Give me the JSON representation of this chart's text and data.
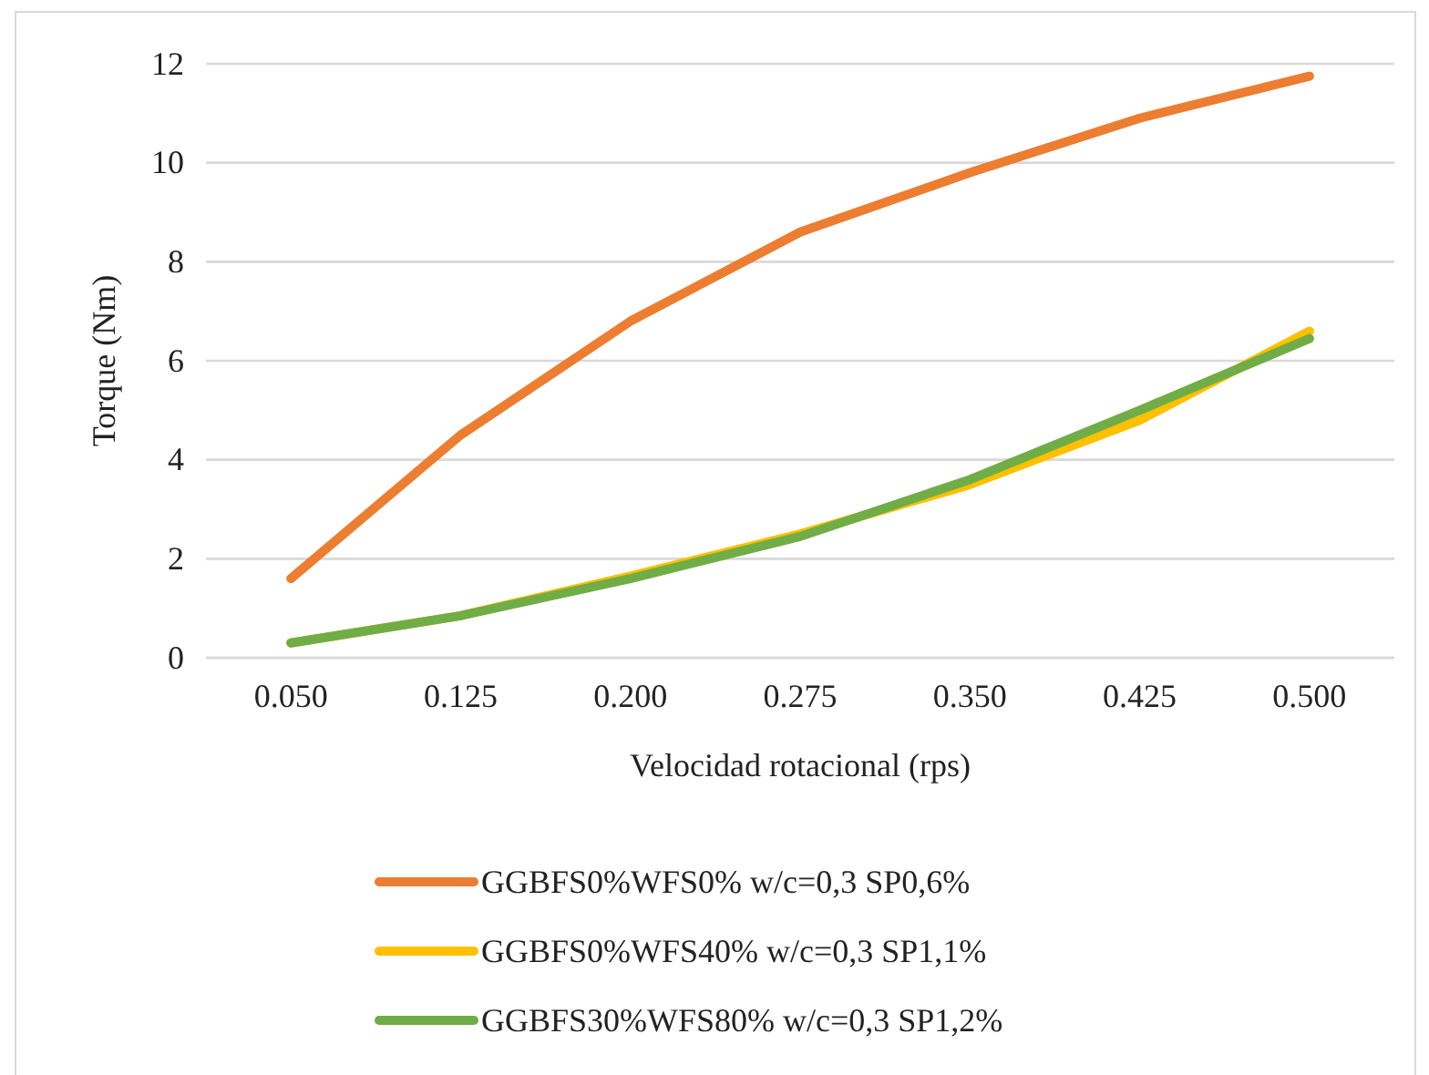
{
  "chart_data": {
    "type": "line",
    "xlabel": "Velocidad rotacional (rps)",
    "ylabel": "Torque (Nm)",
    "categories": [
      "0.050",
      "0.125",
      "0.200",
      "0.275",
      "0.350",
      "0.425",
      "0.500"
    ],
    "series": [
      {
        "name": "GGBFS0%WFS0% w/c=0,3 SP0,6%",
        "color": "#ed7d31",
        "values": [
          1.6,
          4.5,
          6.8,
          8.6,
          9.8,
          10.9,
          11.75
        ]
      },
      {
        "name": "GGBFS0%WFS40% w/c=0,3 SP1,1%",
        "color": "#ffc000",
        "values": [
          0.3,
          0.85,
          1.65,
          2.5,
          3.5,
          4.8,
          6.6
        ]
      },
      {
        "name": "GGBFS30%WFS80% w/c=0,3 SP1,2%",
        "color": "#70ad47",
        "values": [
          0.3,
          0.85,
          1.6,
          2.45,
          3.6,
          5.0,
          6.45
        ]
      }
    ],
    "ylim": [
      0,
      12
    ],
    "yticks": [
      0,
      2,
      4,
      6,
      8,
      10,
      12
    ],
    "grid": "y",
    "legend": "bottom",
    "marker": "none",
    "line_style": "solid"
  }
}
